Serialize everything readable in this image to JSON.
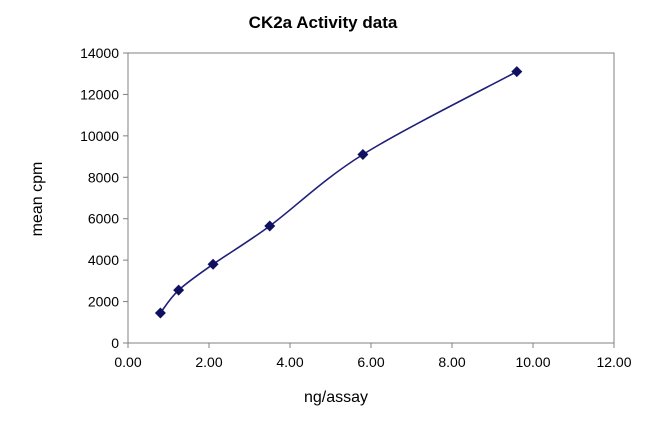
{
  "chart_data": {
    "type": "scatter",
    "title": "CK2a Activity data",
    "xlabel": "ng/assay",
    "ylabel": "mean cpm",
    "xlim": [
      0,
      12
    ],
    "ylim": [
      0,
      14000
    ],
    "x_ticks": [
      "0.00",
      "2.00",
      "4.00",
      "6.00",
      "8.00",
      "10.00",
      "12.00"
    ],
    "y_ticks": [
      "0",
      "2000",
      "4000",
      "6000",
      "8000",
      "10000",
      "12000",
      "14000"
    ],
    "x_tick_values": [
      0,
      2,
      4,
      6,
      8,
      10,
      12
    ],
    "y_tick_values": [
      0,
      2000,
      4000,
      6000,
      8000,
      10000,
      12000,
      14000
    ],
    "grid": false,
    "legend": "none",
    "line_style": "smoothed",
    "marker": "diamond",
    "series": [
      {
        "x": [
          0.8,
          1.25,
          2.1,
          3.5,
          5.8,
          9.6
        ],
        "y": [
          1450,
          2550,
          3800,
          5650,
          9100,
          13100
        ]
      }
    ],
    "colors": {
      "series": "#1f1f7a",
      "marker": "#101060",
      "axis": "#808080",
      "frame": "#808080"
    }
  }
}
